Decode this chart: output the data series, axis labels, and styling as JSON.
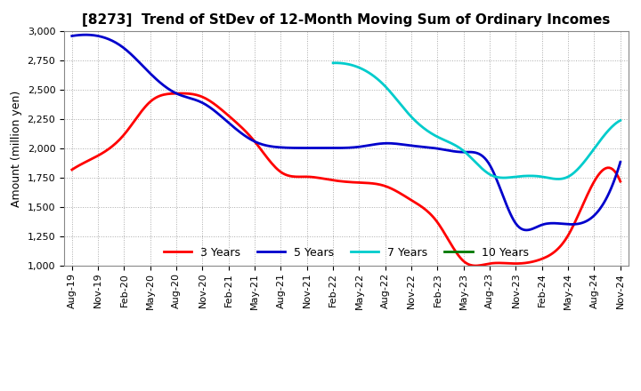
{
  "title": "[8273]  Trend of StDev of 12-Month Moving Sum of Ordinary Incomes",
  "ylabel": "Amount (million yen)",
  "ylim": [
    1000,
    3000
  ],
  "yticks": [
    1000,
    1250,
    1500,
    1750,
    2000,
    2250,
    2500,
    2750,
    3000
  ],
  "background_color": "#ffffff",
  "grid_color": "#aaaaaa",
  "title_fontsize": 11,
  "axis_fontsize": 9,
  "tick_fontsize": 8,
  "x_labels": [
    "Aug-19",
    "Nov-19",
    "Feb-20",
    "May-20",
    "Aug-20",
    "Nov-20",
    "Feb-21",
    "May-21",
    "Aug-21",
    "Nov-21",
    "Feb-22",
    "May-22",
    "Aug-22",
    "Nov-22",
    "Feb-23",
    "May-23",
    "Aug-23",
    "Nov-23",
    "Feb-24",
    "May-24",
    "Aug-24",
    "Nov-24"
  ],
  "series": {
    "3 Years": {
      "color": "#ff0000",
      "x_indices": [
        0,
        1,
        2,
        3,
        4,
        5,
        6,
        7,
        8,
        9,
        10,
        11,
        12,
        13,
        14,
        15,
        16,
        17,
        18,
        19,
        20,
        21
      ],
      "y": [
        1820,
        1940,
        2120,
        2400,
        2470,
        2440,
        2280,
        2060,
        1800,
        1760,
        1730,
        1710,
        1680,
        1560,
        1370,
        1040,
        1020,
        1020,
        1060,
        1260,
        1720,
        1720
      ]
    },
    "5 Years": {
      "color": "#0000cc",
      "x_indices": [
        0,
        1,
        2,
        3,
        4,
        5,
        6,
        7,
        8,
        9,
        10,
        11,
        12,
        13,
        14,
        15,
        16,
        17,
        18,
        19,
        20,
        21
      ],
      "y": [
        2960,
        2960,
        2855,
        2640,
        2470,
        2390,
        2220,
        2060,
        2010,
        2005,
        2005,
        2015,
        2045,
        2025,
        2000,
        1970,
        1860,
        1360,
        1350,
        1355,
        1430,
        1885
      ]
    },
    "7 Years": {
      "color": "#00cccc",
      "x_indices": [
        10,
        11,
        12,
        13,
        14,
        15,
        16,
        17,
        18,
        19,
        20,
        21
      ],
      "y": [
        2730,
        2690,
        2530,
        2270,
        2100,
        1980,
        1780,
        1760,
        1760,
        1760,
        2000,
        2240
      ]
    },
    "10 Years": {
      "color": "#007700",
      "x_indices": [],
      "y": []
    }
  },
  "legend_labels": [
    "3 Years",
    "5 Years",
    "7 Years",
    "10 Years"
  ],
  "legend_colors": [
    "#ff0000",
    "#0000cc",
    "#00cccc",
    "#007700"
  ]
}
